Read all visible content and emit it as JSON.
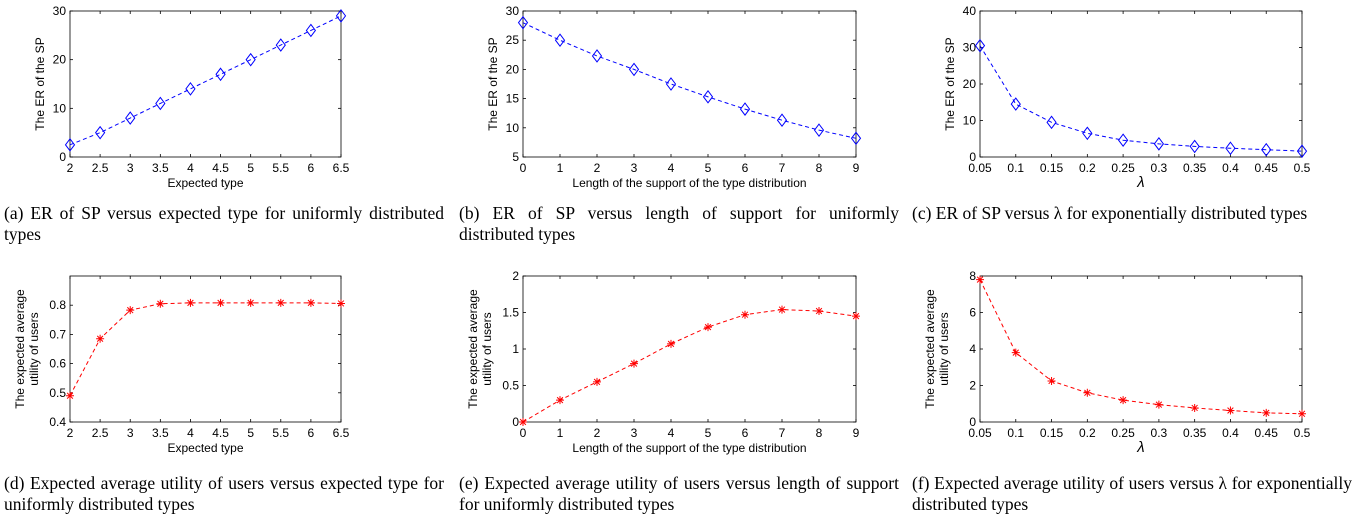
{
  "chart_data": [
    {
      "id": "a",
      "type": "line",
      "xlabel": "Expected type",
      "ylabel": "The ER of the SP",
      "xlim": [
        2,
        6.5
      ],
      "ylim": [
        0,
        30
      ],
      "xticks": [
        "2",
        "2.5",
        "3",
        "3.5",
        "4",
        "4.5",
        "5",
        "5.5",
        "6",
        "6.5"
      ],
      "yticks": [
        "0",
        "10",
        "20",
        "30"
      ],
      "color": "#0000ff",
      "marker": "diamond",
      "x": [
        2,
        2.5,
        3,
        3.5,
        4,
        4.5,
        5,
        5.5,
        6,
        6.5
      ],
      "y": [
        2.5,
        5,
        8,
        11,
        14,
        17,
        20,
        23,
        26,
        29
      ],
      "caption": "(a) ER of SP versus expected type for uniformly distributed types"
    },
    {
      "id": "b",
      "type": "line",
      "xlabel": "Length of the support of the type distribution",
      "ylabel": "The ER of the SP",
      "xlim": [
        0,
        9
      ],
      "ylim": [
        5,
        30
      ],
      "xticks": [
        "0",
        "1",
        "2",
        "3",
        "4",
        "5",
        "6",
        "7",
        "8",
        "9"
      ],
      "yticks": [
        "5",
        "10",
        "15",
        "20",
        "25",
        "30"
      ],
      "color": "#0000ff",
      "marker": "diamond",
      "x": [
        0,
        1,
        2,
        3,
        4,
        5,
        6,
        7,
        8,
        9
      ],
      "y": [
        28,
        25,
        22.3,
        20,
        17.5,
        15.3,
        13.2,
        11.3,
        9.6,
        8.2
      ],
      "caption": "(b) ER of SP versus length of support for uniformly distributed types"
    },
    {
      "id": "c",
      "type": "line",
      "xlabel": "λ",
      "ylabel": "The ER of the SP",
      "xlim": [
        0.05,
        0.5
      ],
      "ylim": [
        0,
        40
      ],
      "xticks": [
        "0.05",
        "0.1",
        "0.15",
        "0.2",
        "0.25",
        "0.3",
        "0.35",
        "0.4",
        "0.45",
        "0.5"
      ],
      "yticks": [
        "0",
        "10",
        "20",
        "30",
        "40"
      ],
      "color": "#0000ff",
      "marker": "diamond",
      "x": [
        0.05,
        0.1,
        0.15,
        0.2,
        0.25,
        0.3,
        0.35,
        0.4,
        0.45,
        0.5
      ],
      "y": [
        30.5,
        14.5,
        9.5,
        6.5,
        4.6,
        3.6,
        2.9,
        2.4,
        2.0,
        1.6
      ],
      "caption": "(c) ER of SP versus λ for exponentially distributed types"
    },
    {
      "id": "d",
      "type": "line",
      "xlabel": "Expected type",
      "ylabel": "The expected average utility of users",
      "ylabel_lines": [
        "The expected average",
        "utility of users"
      ],
      "xlim": [
        2,
        6.5
      ],
      "ylim": [
        0.4,
        0.9
      ],
      "xticks": [
        "2",
        "2.5",
        "3",
        "3.5",
        "4",
        "4.5",
        "5",
        "5.5",
        "6",
        "6.5"
      ],
      "yticks": [
        "0.4",
        "0.5",
        "0.6",
        "0.7",
        "0.8"
      ],
      "ytick_values": [
        0.4,
        0.5,
        0.6,
        0.7,
        0.8
      ],
      "color": "#ff0000",
      "marker": "star",
      "x": [
        2,
        2.5,
        3,
        3.5,
        4,
        4.5,
        5,
        5.5,
        6,
        6.5
      ],
      "y": [
        0.49,
        0.685,
        0.783,
        0.805,
        0.808,
        0.808,
        0.808,
        0.808,
        0.808,
        0.806
      ],
      "caption": "(d) Expected average utility of users versus expected type for uniformly distributed types"
    },
    {
      "id": "e",
      "type": "line",
      "xlabel": "Length of the support of the type distribution",
      "ylabel": "The expected average utility of users",
      "ylabel_lines": [
        "The expected average",
        "utility of users"
      ],
      "xlim": [
        0,
        9
      ],
      "ylim": [
        0,
        2
      ],
      "xticks": [
        "0",
        "1",
        "2",
        "3",
        "4",
        "5",
        "6",
        "7",
        "8",
        "9"
      ],
      "yticks": [
        "0",
        "0.5",
        "1",
        "1.5",
        "2"
      ],
      "color": "#ff0000",
      "marker": "star",
      "x": [
        0,
        1,
        2,
        3,
        4,
        5,
        6,
        7,
        8,
        9
      ],
      "y": [
        0,
        0.3,
        0.55,
        0.8,
        1.07,
        1.3,
        1.47,
        1.54,
        1.52,
        1.45
      ],
      "caption": "(e) Expected average utility of users versus length of support for uniformly distributed types"
    },
    {
      "id": "f",
      "type": "line",
      "xlabel": "λ",
      "ylabel": "The expected average utility of users",
      "ylabel_lines": [
        "The expected average",
        "utility of users"
      ],
      "xlim": [
        0.05,
        0.5
      ],
      "ylim": [
        0,
        8
      ],
      "xticks": [
        "0.05",
        "0.1",
        "0.15",
        "0.2",
        "0.25",
        "0.3",
        "0.35",
        "0.4",
        "0.45",
        "0.5"
      ],
      "yticks": [
        "0",
        "2",
        "4",
        "6",
        "8"
      ],
      "color": "#ff0000",
      "marker": "star",
      "x": [
        0.05,
        0.1,
        0.15,
        0.2,
        0.25,
        0.3,
        0.35,
        0.4,
        0.45,
        0.5
      ],
      "y": [
        7.8,
        3.8,
        2.25,
        1.6,
        1.2,
        0.95,
        0.77,
        0.63,
        0.5,
        0.45
      ],
      "caption": "(f) Expected average utility of users versus λ for exponentially distributed types"
    }
  ]
}
